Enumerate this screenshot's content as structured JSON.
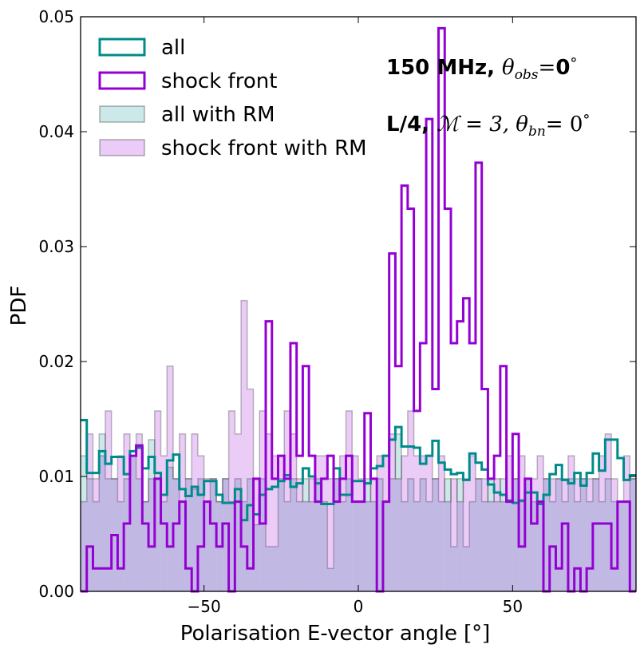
{
  "chart_data": {
    "type": "histogram",
    "title": "",
    "xlabel": "Polarisation E-vector angle",
    "xlabel_unit": "[°]",
    "ylabel": "PDF",
    "xlim": [
      -90,
      90
    ],
    "ylim": [
      0,
      0.05
    ],
    "xticks": [
      -50,
      0,
      50
    ],
    "xtick_labels": [
      "−50",
      "0",
      "50"
    ],
    "yticks": [
      0.0,
      0.01,
      0.02,
      0.03,
      0.04,
      0.05
    ],
    "ytick_labels": [
      "0.00",
      "0.01",
      "0.02",
      "0.03",
      "0.04",
      "0.05"
    ],
    "bin_edges_start": -90,
    "bin_width": 2,
    "legend_position": "top-left",
    "annotations": [
      {
        "bold": "150 MHz, ",
        "math": "θ",
        "sub": "obs",
        "after_math": "=",
        "bold_after": "0",
        "sup": "°"
      },
      {
        "bold": "L/4, ",
        "math": "ℳ = 3, θ",
        "sub": "bn",
        "after_math": "= 0",
        "bold_after": "",
        "sup": "°"
      }
    ],
    "series": [
      {
        "name": "all",
        "style": "step",
        "color": "#008b8b",
        "values": [
          0.0149,
          0.0103,
          0.0103,
          0.0122,
          0.0111,
          0.0117,
          0.0117,
          0.0102,
          0.0122,
          0.0125,
          0.0107,
          0.0117,
          0.0103,
          0.0084,
          0.0114,
          0.0119,
          0.0089,
          0.0083,
          0.0091,
          0.0084,
          0.0096,
          0.0096,
          0.0084,
          0.0077,
          0.0077,
          0.0089,
          0.0062,
          0.0075,
          0.0067,
          0.0084,
          0.0089,
          0.0091,
          0.0096,
          0.0101,
          0.0091,
          0.0094,
          0.0107,
          0.01,
          0.0094,
          0.0076,
          0.0076,
          0.0107,
          0.0084,
          0.0084,
          0.0096,
          0.0096,
          0.0094,
          0.0107,
          0.0109,
          0.0118,
          0.0132,
          0.0143,
          0.0126,
          0.0126,
          0.0125,
          0.0111,
          0.0118,
          0.0131,
          0.0112,
          0.0106,
          0.0102,
          0.0103,
          0.0097,
          0.012,
          0.0112,
          0.0106,
          0.0093,
          0.0086,
          0.0084,
          0.0079,
          0.0077,
          0.0079,
          0.0086,
          0.0086,
          0.0076,
          0.0084,
          0.0102,
          0.011,
          0.0097,
          0.0094,
          0.0103,
          0.0092,
          0.0103,
          0.012,
          0.0105,
          0.0132,
          0.0132,
          0.0116,
          0.0097,
          0.0101
        ]
      },
      {
        "name": "shock front",
        "style": "step",
        "color": "#9400d3",
        "values": [
          0.0,
          0.0039,
          0.002,
          0.002,
          0.002,
          0.0049,
          0.002,
          0.0059,
          0.0118,
          0.0127,
          0.0059,
          0.0039,
          0.0098,
          0.0059,
          0.0039,
          0.0059,
          0.0078,
          0.002,
          0.0,
          0.0039,
          0.0078,
          0.0059,
          0.0039,
          0.0059,
          0.0,
          0.0078,
          0.0039,
          0.002,
          0.0098,
          0.0059,
          0.0235,
          0.0098,
          0.0118,
          0.0098,
          0.0216,
          0.0118,
          0.0196,
          0.0118,
          0.0078,
          0.0098,
          0.0118,
          0.0078,
          0.0098,
          0.0118,
          0.0078,
          0.0078,
          0.0155,
          0.0098,
          0.0,
          0.0078,
          0.0294,
          0.0196,
          0.0353,
          0.0333,
          0.0157,
          0.0216,
          0.0411,
          0.0176,
          0.049,
          0.0333,
          0.0216,
          0.0235,
          0.0255,
          0.0216,
          0.0373,
          0.0176,
          0.0098,
          0.0118,
          0.0196,
          0.0078,
          0.0137,
          0.0039,
          0.0098,
          0.0059,
          0.0078,
          0.0,
          0.0039,
          0.002,
          0.0059,
          0.0,
          0.002,
          0.0,
          0.002,
          0.0059,
          0.0059,
          0.0059,
          0.002,
          0.0078,
          0.0078,
          0.0
        ]
      },
      {
        "name": "all with RM",
        "style": "filled",
        "color": "#008b8b",
        "opacity": 0.2,
        "values": [
          0.0118,
          0.0098,
          0.0078,
          0.0137,
          0.0098,
          0.0098,
          0.0078,
          0.0098,
          0.0118,
          0.0098,
          0.0078,
          0.0132,
          0.0098,
          0.0078,
          0.0108,
          0.0098,
          0.0078,
          0.0098,
          0.0089,
          0.0098,
          0.0078,
          0.0098,
          0.0078,
          0.0098,
          0.0078,
          0.0098,
          0.0078,
          0.0098,
          0.0058,
          0.0098,
          0.0039,
          0.0039,
          0.0098,
          0.0078,
          0.0098,
          0.0078,
          0.0098,
          0.0078,
          0.0098,
          0.0078,
          0.002,
          0.0098,
          0.0078,
          0.0098,
          0.0078,
          0.0078,
          0.0098,
          0.0078,
          0.0098,
          0.0078,
          0.0098,
          0.0137,
          0.0078,
          0.0098,
          0.0078,
          0.0098,
          0.0078,
          0.0098,
          0.0078,
          0.0098,
          0.0039,
          0.0098,
          0.0039,
          0.0078,
          0.0098,
          0.0078,
          0.0098,
          0.0078,
          0.0098,
          0.0078,
          0.0098,
          0.0078,
          0.0098,
          0.0078,
          0.0078,
          0.0098,
          0.0078,
          0.0098,
          0.0078,
          0.0098,
          0.0078,
          0.0098,
          0.0078,
          0.0098,
          0.0078,
          0.0098,
          0.0078,
          0.0078,
          0.0078,
          0.0098
        ]
      },
      {
        "name": "shock front with RM",
        "style": "filled",
        "color": "#9400d3",
        "opacity": 0.2,
        "values": [
          0.0078,
          0.0137,
          0.0098,
          0.0118,
          0.0157,
          0.0098,
          0.0118,
          0.0137,
          0.0118,
          0.0137,
          0.0078,
          0.0098,
          0.0157,
          0.0118,
          0.0196,
          0.0098,
          0.0137,
          0.0098,
          0.0137,
          0.0118,
          0.0098,
          0.0098,
          0.0078,
          0.0098,
          0.0157,
          0.0137,
          0.0253,
          0.0176,
          0.0098,
          0.0157,
          0.0137,
          0.0118,
          0.0118,
          0.0157,
          0.0137,
          0.0098,
          0.0078,
          0.0098,
          0.0118,
          0.0118,
          0.0098,
          0.0098,
          0.0118,
          0.0157,
          0.0118,
          0.0098,
          0.0078,
          0.0098,
          0.0118,
          0.0118,
          0.0137,
          0.0098,
          0.0118,
          0.0157,
          0.0118,
          0.0118,
          0.0118,
          0.0098,
          0.0118,
          0.0078,
          0.0098,
          0.0078,
          0.0098,
          0.0118,
          0.0098,
          0.0098,
          0.0078,
          0.0098,
          0.0078,
          0.0118,
          0.0098,
          0.0118,
          0.0098,
          0.0098,
          0.0118,
          0.0098,
          0.0098,
          0.0098,
          0.0098,
          0.0118,
          0.0098,
          0.0098,
          0.0098,
          0.0098,
          0.0118,
          0.0137,
          0.0098,
          0.0078,
          0.0118,
          0.0098
        ]
      }
    ]
  }
}
